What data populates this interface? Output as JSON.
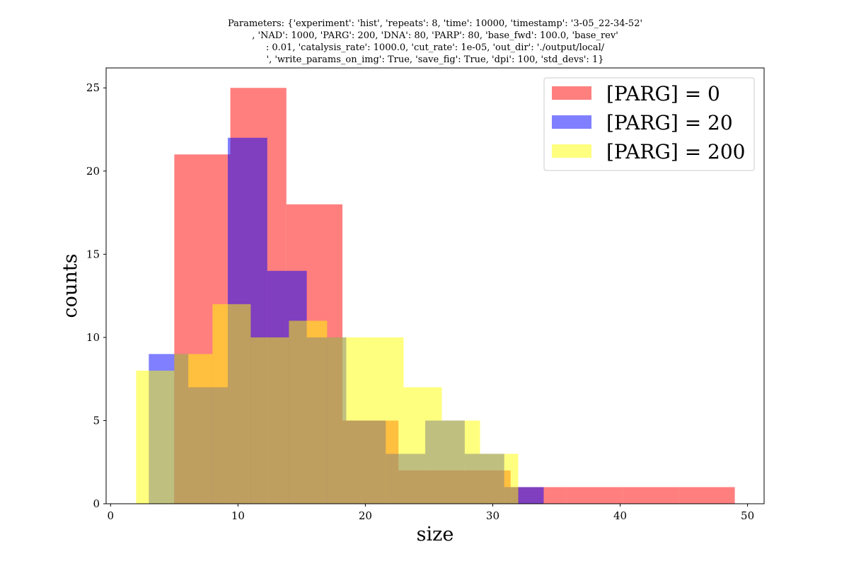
{
  "chart_data": {
    "type": "bar",
    "title_lines": [
      "Parameters: {'experiment': 'hist', 'repeats': 8, 'time': 10000, 'timestamp': '3-05_22-34-52'",
      ", 'NAD': 1000, 'PARG': 200, 'DNA': 80, 'PARP': 80, 'base_fwd': 100.0, 'base_rev'",
      ": 0.01, 'catalysis_rate': 1000.0, 'cut_rate': 1e-05, 'out_dir': './output/local/",
      "', 'write_params_on_img': True, 'save_fig': True, 'dpi': 100, 'std_devs': 1}"
    ],
    "xlabel": "size",
    "ylabel": "counts",
    "xlim": [
      -0.35,
      51.3
    ],
    "ylim": [
      0,
      26.2
    ],
    "xticks": [
      0,
      10,
      20,
      30,
      40,
      50
    ],
    "yticks": [
      0,
      5,
      10,
      15,
      20,
      25
    ],
    "grid": false,
    "legend_position": "top-right",
    "series": [
      {
        "name": "[PARG] = 0",
        "color": "#ff0000",
        "opacity": 0.5,
        "bin_edges": [
          5,
          9.4,
          13.8,
          18.2,
          22.6,
          27,
          31.4,
          35.8,
          40.2,
          44.6,
          49
        ],
        "counts": [
          21,
          25,
          18,
          5,
          2,
          2,
          1,
          1,
          1,
          1
        ]
      },
      {
        "name": "[PARG] = 20",
        "color": "#0000ff",
        "opacity": 0.5,
        "bin_edges": [
          3,
          6.1,
          9.2,
          12.3,
          15.4,
          18.5,
          21.6,
          24.7,
          27.8,
          30.9,
          34
        ],
        "counts": [
          9,
          7,
          22,
          14,
          10,
          5,
          3,
          5,
          3,
          1
        ]
      },
      {
        "name": "[PARG] = 200",
        "color": "#ffff00",
        "opacity": 0.5,
        "bin_edges": [
          2,
          5,
          8,
          11,
          14,
          17,
          20,
          23,
          26,
          29,
          32
        ],
        "counts": [
          8,
          9,
          12,
          10,
          11,
          10,
          10,
          7,
          5,
          3
        ]
      }
    ]
  }
}
